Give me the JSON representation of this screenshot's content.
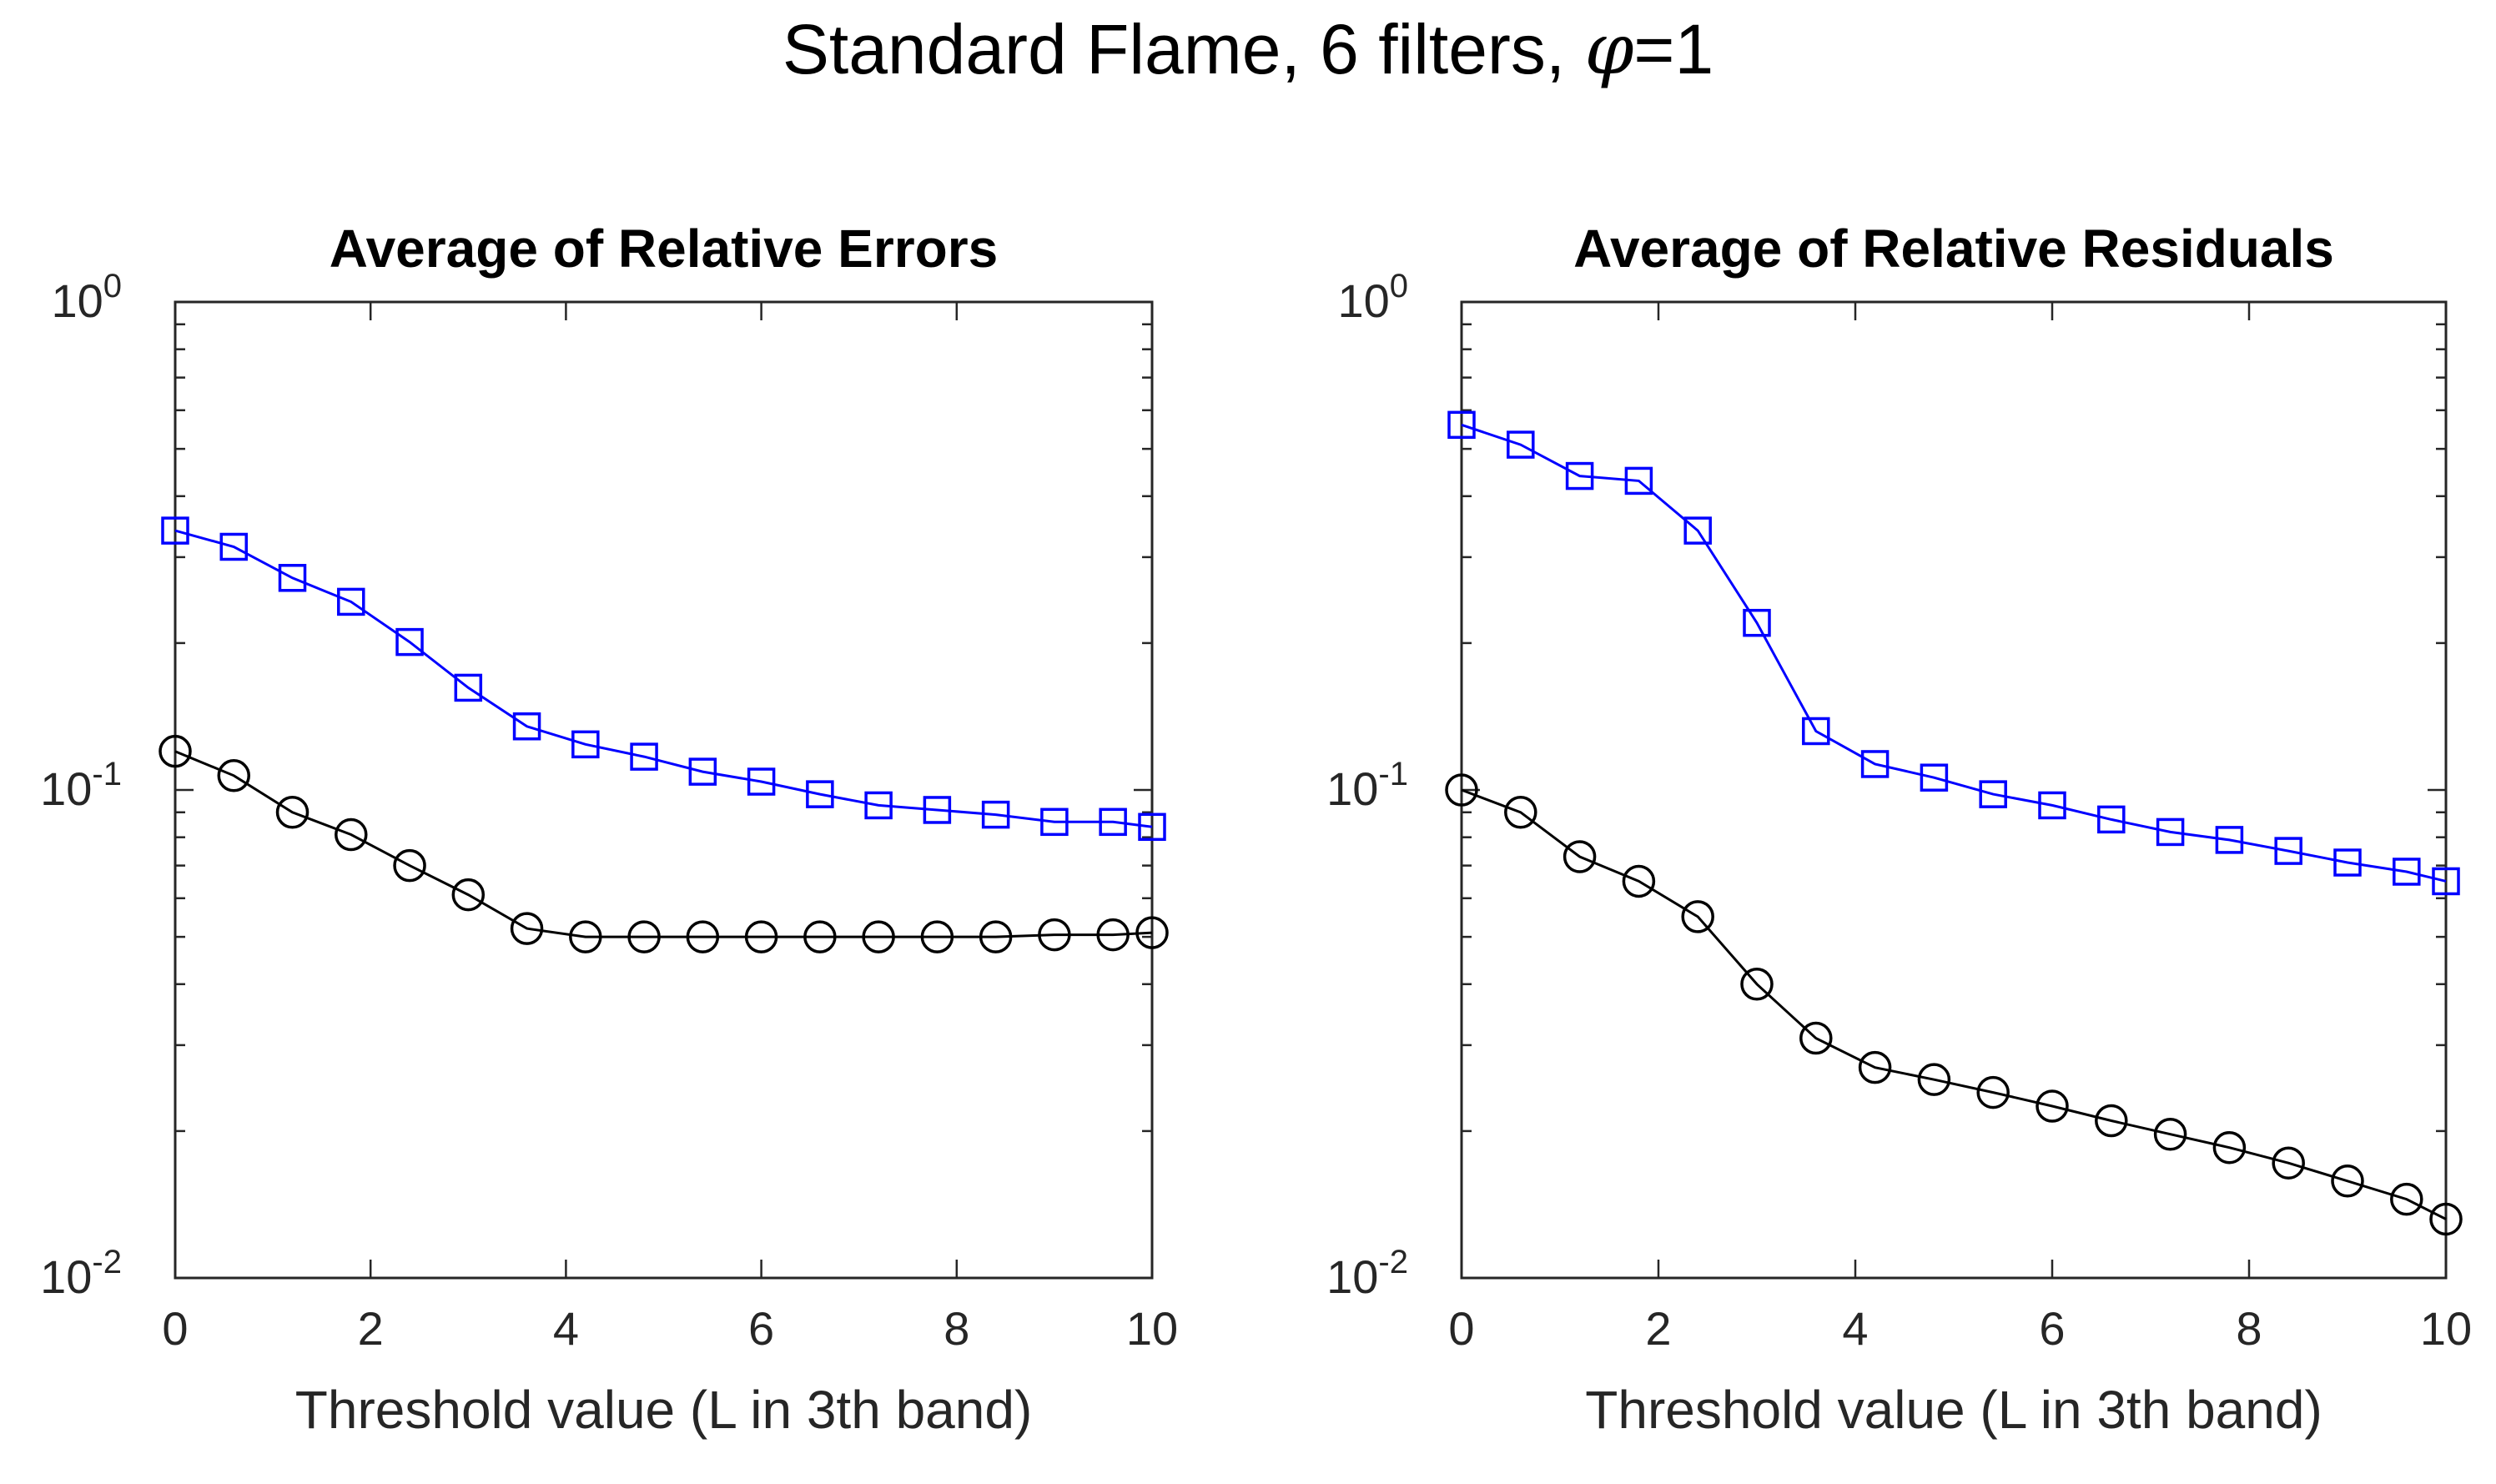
{
  "figure": {
    "title_main": "Standard Flame, 6 filters, ",
    "title_symbol": "φ",
    "title_tail": "=1"
  },
  "colors": {
    "series_blue": "#0000ff",
    "series_black": "#000000",
    "axes": "#262626"
  },
  "chart_data": [
    {
      "type": "line",
      "title": "Average of Relative Errors",
      "xlabel": "Threshold value (L in 3th band)",
      "ylabel": "",
      "yscale": "log",
      "xlim": [
        0,
        10
      ],
      "ylim": [
        0.01,
        1
      ],
      "xticks": [
        0,
        2,
        4,
        6,
        8,
        10
      ],
      "yticks": [
        {
          "base": "10",
          "exp": "-2",
          "value": 0.01
        },
        {
          "base": "10",
          "exp": "-1",
          "value": 0.1
        },
        {
          "base": "10",
          "exp": "0",
          "value": 1
        }
      ],
      "x": [
        0,
        0.6,
        1.2,
        1.8,
        2.4,
        3.0,
        3.6,
        4.2,
        4.8,
        5.4,
        6.0,
        6.6,
        7.2,
        7.8,
        8.4,
        9.0,
        9.6,
        10.0
      ],
      "series": [
        {
          "name": "square",
          "color": "#0000ff",
          "marker": "square",
          "values": [
            0.34,
            0.315,
            0.272,
            0.243,
            0.201,
            0.162,
            0.135,
            0.124,
            0.117,
            0.109,
            0.104,
            0.098,
            0.093,
            0.091,
            0.089,
            0.086,
            0.086,
            0.084
          ]
        },
        {
          "name": "circle",
          "color": "#000000",
          "marker": "circle",
          "values": [
            0.12,
            0.107,
            0.09,
            0.081,
            0.07,
            0.061,
            0.052,
            0.05,
            0.05,
            0.05,
            0.05,
            0.05,
            0.05,
            0.05,
            0.05,
            0.0505,
            0.0505,
            0.051
          ]
        }
      ]
    },
    {
      "type": "line",
      "title": "Average of Relative Residuals",
      "xlabel": "Threshold value (L in 3th band)",
      "ylabel": "",
      "yscale": "log",
      "xlim": [
        0,
        10
      ],
      "ylim": [
        0.01,
        1
      ],
      "xticks": [
        0,
        2,
        4,
        6,
        8,
        10
      ],
      "yticks": [
        {
          "base": "10",
          "exp": "-2",
          "value": 0.01
        },
        {
          "base": "10",
          "exp": "-1",
          "value": 0.1
        },
        {
          "base": "10",
          "exp": "0",
          "value": 1
        }
      ],
      "x": [
        0,
        0.6,
        1.2,
        1.8,
        2.4,
        3.0,
        3.6,
        4.2,
        4.8,
        5.4,
        6.0,
        6.6,
        7.2,
        7.8,
        8.4,
        9.0,
        9.6,
        10.0
      ],
      "series": [
        {
          "name": "square",
          "color": "#0000ff",
          "marker": "square",
          "values": [
            0.56,
            0.51,
            0.44,
            0.43,
            0.34,
            0.22,
            0.132,
            0.113,
            0.106,
            0.098,
            0.093,
            0.087,
            0.082,
            0.079,
            0.075,
            0.071,
            0.068,
            0.065
          ]
        },
        {
          "name": "circle",
          "color": "#000000",
          "marker": "circle",
          "values": [
            0.1,
            0.09,
            0.073,
            0.065,
            0.055,
            0.04,
            0.031,
            0.027,
            0.0255,
            0.024,
            0.0225,
            0.021,
            0.0197,
            0.0185,
            0.0172,
            0.0158,
            0.0145,
            0.0132
          ]
        }
      ]
    }
  ]
}
